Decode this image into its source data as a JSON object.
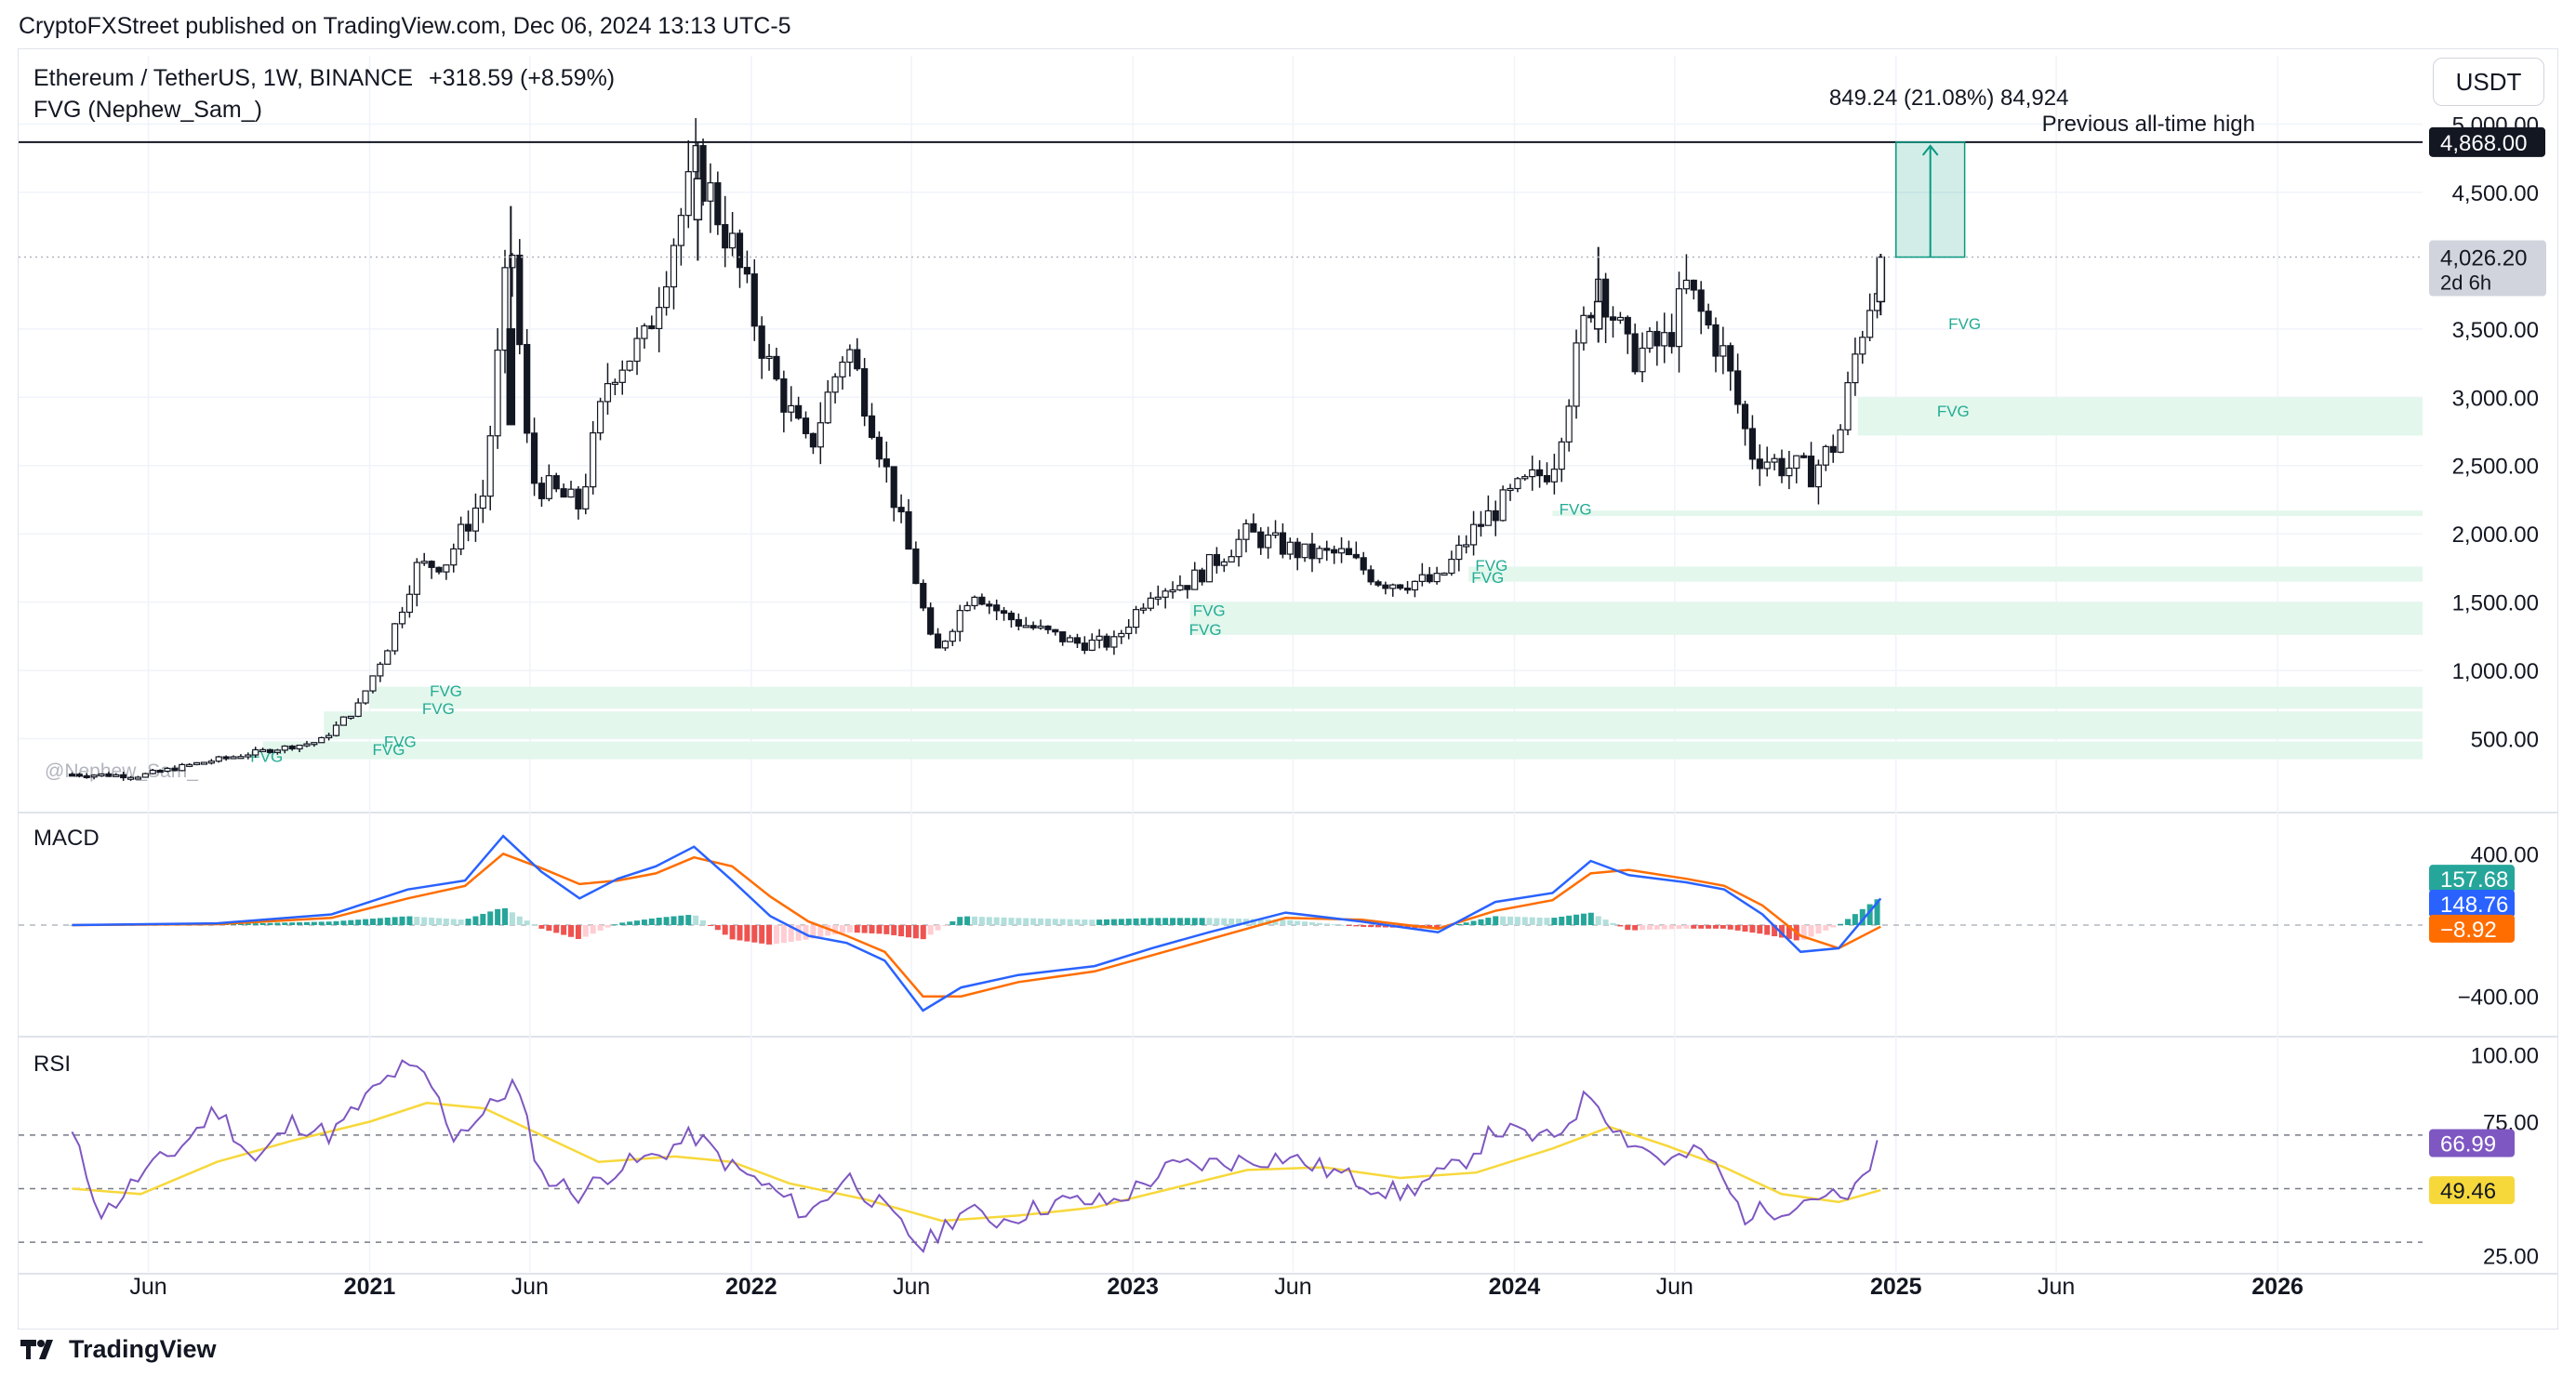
{
  "publisher_line": "CryptoFXStreet published on TradingView.com, Dec 06, 2024 13:13 UTC-5",
  "header": {
    "symbol": "Ethereum / TetherUS, 1W, BINANCE",
    "change": "+318.59 (+8.59%)",
    "indicator": "FVG (Nephew_Sam_)"
  },
  "currency": "USDT",
  "watermark": "@Nephew_Sam_",
  "footer_brand": "TradingView",
  "colors": {
    "up": "#089981",
    "down": "#f23645",
    "macd_line": "#2962ff",
    "signal_line": "#ff6d00",
    "rsi_line": "#7e57c2",
    "rsi_ma": "#f7d83b",
    "fvg_fill": "#e3f7ec",
    "fvg_label": "#22ab94"
  },
  "chart_data": {
    "type": "candlestick",
    "x_axis": {
      "ticks": [
        {
          "label": "Jun",
          "t": 2020.42,
          "bold": false
        },
        {
          "label": "2021",
          "t": 2021.0,
          "bold": true
        },
        {
          "label": "Jun",
          "t": 2021.42,
          "bold": false
        },
        {
          "label": "2022",
          "t": 2022.0,
          "bold": true
        },
        {
          "label": "Jun",
          "t": 2022.42,
          "bold": false
        },
        {
          "label": "2023",
          "t": 2023.0,
          "bold": true
        },
        {
          "label": "Jun",
          "t": 2023.42,
          "bold": false
        },
        {
          "label": "2024",
          "t": 2024.0,
          "bold": true
        },
        {
          "label": "Jun",
          "t": 2024.42,
          "bold": false
        },
        {
          "label": "2025",
          "t": 2025.0,
          "bold": true
        },
        {
          "label": "Jun",
          "t": 2025.42,
          "bold": false
        },
        {
          "label": "2026",
          "t": 2026.0,
          "bold": true
        }
      ]
    },
    "price_pane": {
      "y_ticks": [
        "500.00",
        "1,000.00",
        "1,500.00",
        "2,000.00",
        "2,500.00",
        "3,000.00",
        "3,500.00",
        "4,500.00",
        "5,000.00"
      ],
      "ylim": [
        0,
        5500
      ],
      "previous_ath_value": "4,868.00",
      "previous_ath_label": "Previous all-time high",
      "current_price": "4,026.20",
      "countdown": "2d 6h",
      "measure_label": "849.24 (21.08%) 84,924",
      "fvg_zones": [
        {
          "t0": 2021.0,
          "lo": 720,
          "hi": 880,
          "label": "FVG"
        },
        {
          "t0": 2020.88,
          "lo": 500,
          "hi": 700,
          "label": "FVG"
        },
        {
          "t0": 2020.72,
          "lo": 350,
          "hi": 480,
          "label": "FVG"
        },
        {
          "t0": 2023.15,
          "lo": 1260,
          "hi": 1500,
          "label": "FVG"
        },
        {
          "t0": 2023.88,
          "lo": 1650,
          "hi": 1760,
          "label": "FVG"
        },
        {
          "t0": 2024.1,
          "lo": 2130,
          "hi": 2170,
          "label": "FVG"
        },
        {
          "t0": 2024.9,
          "lo": 2720,
          "hi": 3000,
          "label": "FVG"
        },
        {
          "t0": 2025.2,
          "lo": 3530,
          "hi": 3530,
          "label": "FVG"
        }
      ],
      "fvg_labels": [
        {
          "t": 2021.2,
          "price": 810,
          "text": "FVG"
        },
        {
          "t": 2021.18,
          "price": 680,
          "text": "FVG"
        },
        {
          "t": 2021.08,
          "price": 440,
          "text": "FVG"
        },
        {
          "t": 2021.05,
          "price": 380,
          "text": "FVG"
        },
        {
          "t": 2020.73,
          "price": 330,
          "text": "FVG"
        },
        {
          "t": 2023.2,
          "price": 1400,
          "text": "FVG"
        },
        {
          "t": 2023.19,
          "price": 1260,
          "text": "FVG"
        },
        {
          "t": 2023.94,
          "price": 1730,
          "text": "FVG"
        },
        {
          "t": 2023.93,
          "price": 1640,
          "text": "FVG"
        },
        {
          "t": 2024.16,
          "price": 2140,
          "text": "FVG"
        },
        {
          "t": 2025.15,
          "price": 2860,
          "text": "FVG"
        },
        {
          "t": 2025.18,
          "price": 3500,
          "text": "FVG"
        }
      ],
      "path_points": [
        [
          2020.22,
          240
        ],
        [
          2020.4,
          230
        ],
        [
          2020.55,
          320
        ],
        [
          2020.7,
          400
        ],
        [
          2020.87,
          480
        ],
        [
          2020.97,
          740
        ],
        [
          2021.05,
          1200
        ],
        [
          2021.12,
          1750
        ],
        [
          2021.2,
          1800
        ],
        [
          2021.3,
          2300
        ],
        [
          2021.37,
          4200
        ],
        [
          2021.42,
          2400
        ],
        [
          2021.55,
          2200
        ],
        [
          2021.63,
          3200
        ],
        [
          2021.72,
          3400
        ],
        [
          2021.8,
          4200
        ],
        [
          2021.86,
          4700
        ],
        [
          2021.95,
          4100
        ],
        [
          2022.05,
          3200
        ],
        [
          2022.15,
          2600
        ],
        [
          2022.25,
          3400
        ],
        [
          2022.32,
          2800
        ],
        [
          2022.42,
          1800
        ],
        [
          2022.48,
          1100
        ],
        [
          2022.58,
          1600
        ],
        [
          2022.66,
          1400
        ],
        [
          2022.75,
          1300
        ],
        [
          2022.85,
          1200
        ],
        [
          2022.95,
          1200
        ],
        [
          2023.05,
          1600
        ],
        [
          2023.15,
          1650
        ],
        [
          2023.3,
          2000
        ],
        [
          2023.45,
          1850
        ],
        [
          2023.55,
          1850
        ],
        [
          2023.65,
          1650
        ],
        [
          2023.8,
          1650
        ],
        [
          2023.9,
          2050
        ],
        [
          2024.0,
          2300
        ],
        [
          2024.1,
          2500
        ],
        [
          2024.18,
          3500
        ],
        [
          2024.22,
          3900
        ],
        [
          2024.3,
          3300
        ],
        [
          2024.4,
          3400
        ],
        [
          2024.45,
          3800
        ],
        [
          2024.55,
          3300
        ],
        [
          2024.62,
          2600
        ],
        [
          2024.7,
          2500
        ],
        [
          2024.78,
          2450
        ],
        [
          2024.85,
          2700
        ],
        [
          2024.9,
          3400
        ],
        [
          2024.93,
          3700
        ],
        [
          2024.96,
          4026
        ]
      ],
      "candles": [
        [
          2021.37,
          3500,
          4400,
          2800,
          2800,
          "down"
        ],
        [
          2021.86,
          4300,
          4868,
          4000,
          4600,
          "up"
        ],
        [
          2024.22,
          3500,
          4100,
          3400,
          3700,
          "up"
        ],
        [
          2024.96,
          3700,
          4050,
          3600,
          4026,
          "up"
        ]
      ]
    },
    "macd_pane": {
      "label": "MACD",
      "y_ticks": [
        "400.00",
        "−400.00"
      ],
      "ylim": [
        -600,
        600
      ],
      "histogram_value": "157.68",
      "macd_value": "148.76",
      "signal_value": "−8.92",
      "macd_points": [
        [
          2020.22,
          0
        ],
        [
          2020.6,
          10
        ],
        [
          2020.9,
          60
        ],
        [
          2021.1,
          200
        ],
        [
          2021.25,
          250
        ],
        [
          2021.35,
          500
        ],
        [
          2021.45,
          300
        ],
        [
          2021.55,
          150
        ],
        [
          2021.65,
          260
        ],
        [
          2021.75,
          330
        ],
        [
          2021.85,
          440
        ],
        [
          2021.95,
          250
        ],
        [
          2022.05,
          50
        ],
        [
          2022.15,
          -60
        ],
        [
          2022.25,
          -100
        ],
        [
          2022.35,
          -200
        ],
        [
          2022.45,
          -480
        ],
        [
          2022.55,
          -350
        ],
        [
          2022.7,
          -280
        ],
        [
          2022.9,
          -230
        ],
        [
          2023.05,
          -130
        ],
        [
          2023.2,
          -40
        ],
        [
          2023.4,
          70
        ],
        [
          2023.6,
          20
        ],
        [
          2023.8,
          -40
        ],
        [
          2023.95,
          130
        ],
        [
          2024.1,
          180
        ],
        [
          2024.2,
          360
        ],
        [
          2024.3,
          280
        ],
        [
          2024.45,
          240
        ],
        [
          2024.55,
          200
        ],
        [
          2024.65,
          60
        ],
        [
          2024.75,
          -150
        ],
        [
          2024.85,
          -130
        ],
        [
          2024.96,
          149
        ]
      ],
      "signal_points": [
        [
          2020.22,
          0
        ],
        [
          2020.6,
          5
        ],
        [
          2020.9,
          40
        ],
        [
          2021.1,
          150
        ],
        [
          2021.25,
          220
        ],
        [
          2021.35,
          400
        ],
        [
          2021.45,
          320
        ],
        [
          2021.55,
          230
        ],
        [
          2021.65,
          250
        ],
        [
          2021.75,
          290
        ],
        [
          2021.85,
          380
        ],
        [
          2021.95,
          330
        ],
        [
          2022.05,
          160
        ],
        [
          2022.15,
          20
        ],
        [
          2022.25,
          -60
        ],
        [
          2022.35,
          -150
        ],
        [
          2022.45,
          -400
        ],
        [
          2022.55,
          -400
        ],
        [
          2022.7,
          -320
        ],
        [
          2022.9,
          -260
        ],
        [
          2023.05,
          -170
        ],
        [
          2023.2,
          -80
        ],
        [
          2023.4,
          40
        ],
        [
          2023.6,
          30
        ],
        [
          2023.8,
          -20
        ],
        [
          2023.95,
          80
        ],
        [
          2024.1,
          140
        ],
        [
          2024.2,
          290
        ],
        [
          2024.3,
          310
        ],
        [
          2024.45,
          260
        ],
        [
          2024.55,
          220
        ],
        [
          2024.65,
          110
        ],
        [
          2024.75,
          -60
        ],
        [
          2024.85,
          -130
        ],
        [
          2024.96,
          -9
        ]
      ]
    },
    "rsi_pane": {
      "label": "RSI",
      "y_ticks": [
        "100.00",
        "75.00",
        "25.00"
      ],
      "ylim": [
        20,
        105
      ],
      "bands": [
        30,
        50,
        70
      ],
      "rsi_value": "66.99",
      "ma_value": "49.46",
      "rsi_points": [
        [
          2020.22,
          70
        ],
        [
          2020.3,
          40
        ],
        [
          2020.4,
          55
        ],
        [
          2020.5,
          65
        ],
        [
          2020.6,
          80
        ],
        [
          2020.7,
          60
        ],
        [
          2020.8,
          75
        ],
        [
          2020.9,
          70
        ],
        [
          2021.0,
          85
        ],
        [
          2021.08,
          95
        ],
        [
          2021.15,
          92
        ],
        [
          2021.22,
          70
        ],
        [
          2021.3,
          78
        ],
        [
          2021.38,
          90
        ],
        [
          2021.45,
          55
        ],
        [
          2021.55,
          48
        ],
        [
          2021.65,
          58
        ],
        [
          2021.75,
          62
        ],
        [
          2021.85,
          70
        ],
        [
          2021.95,
          58
        ],
        [
          2022.05,
          50
        ],
        [
          2022.15,
          40
        ],
        [
          2022.25,
          55
        ],
        [
          2022.35,
          42
        ],
        [
          2022.45,
          28
        ],
        [
          2022.55,
          42
        ],
        [
          2022.65,
          38
        ],
        [
          2022.8,
          45
        ],
        [
          2022.95,
          45
        ],
        [
          2023.1,
          58
        ],
        [
          2023.25,
          60
        ],
        [
          2023.4,
          62
        ],
        [
          2023.55,
          55
        ],
        [
          2023.7,
          48
        ],
        [
          2023.85,
          58
        ],
        [
          2023.95,
          72
        ],
        [
          2024.1,
          68
        ],
        [
          2024.2,
          86
        ],
        [
          2024.28,
          70
        ],
        [
          2024.4,
          60
        ],
        [
          2024.5,
          64
        ],
        [
          2024.6,
          40
        ],
        [
          2024.7,
          43
        ],
        [
          2024.8,
          48
        ],
        [
          2024.88,
          45
        ],
        [
          2024.96,
          67
        ]
      ],
      "ma_points": [
        [
          2020.22,
          50
        ],
        [
          2020.4,
          48
        ],
        [
          2020.6,
          60
        ],
        [
          2020.8,
          68
        ],
        [
          2021.0,
          75
        ],
        [
          2021.15,
          82
        ],
        [
          2021.3,
          80
        ],
        [
          2021.45,
          70
        ],
        [
          2021.6,
          60
        ],
        [
          2021.8,
          62
        ],
        [
          2021.95,
          60
        ],
        [
          2022.1,
          52
        ],
        [
          2022.3,
          46
        ],
        [
          2022.5,
          38
        ],
        [
          2022.7,
          40
        ],
        [
          2022.9,
          43
        ],
        [
          2023.1,
          50
        ],
        [
          2023.3,
          57
        ],
        [
          2023.5,
          58
        ],
        [
          2023.7,
          54
        ],
        [
          2023.9,
          56
        ],
        [
          2024.1,
          65
        ],
        [
          2024.25,
          73
        ],
        [
          2024.4,
          66
        ],
        [
          2024.55,
          58
        ],
        [
          2024.7,
          48
        ],
        [
          2024.85,
          45
        ],
        [
          2024.96,
          49.5
        ]
      ]
    }
  }
}
